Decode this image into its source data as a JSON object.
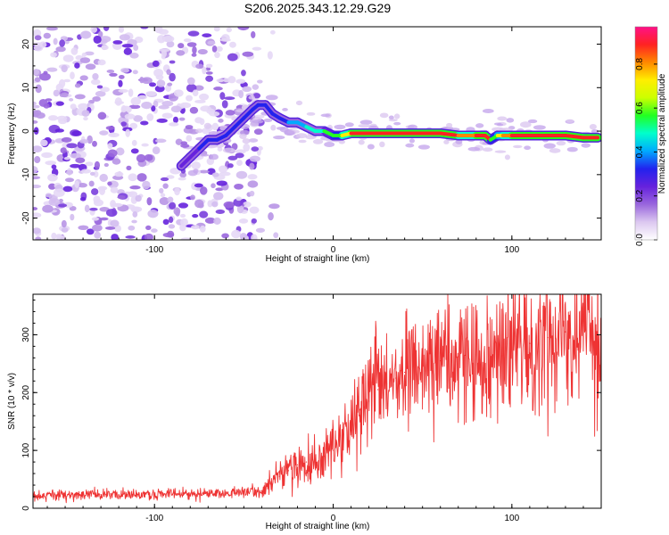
{
  "title": "S206.2025.343.12.29.G29",
  "chart_data": [
    {
      "type": "heatmap",
      "title": "S206.2025.343.12.29.G29",
      "xlabel": "Height of straight line (km)",
      "ylabel": "Frequency (Hz)",
      "xlim": [
        -168,
        150
      ],
      "ylim": [
        -25,
        24
      ],
      "xticks": [
        -100,
        0,
        100
      ],
      "yticks": [
        -20,
        -10,
        0,
        10,
        20
      ],
      "colorbar": {
        "label": "Normalized spectral amplitude",
        "range": [
          0,
          0.97
        ],
        "ticks": [
          0,
          0.2,
          0.4,
          0.6,
          0.8
        ],
        "colors": [
          "#ffffff",
          "#dcc8f0",
          "#9966dd",
          "#6622dd",
          "#2222ee",
          "#00aaff",
          "#00ffcc",
          "#22ff22",
          "#ccff00",
          "#ffee00",
          "#ff8800",
          "#ff2222",
          "#ff1188"
        ]
      },
      "noise_region_km": [
        -168,
        -40
      ],
      "ridge": {
        "x": [
          -85,
          -80,
          -75,
          -70,
          -65,
          -60,
          -55,
          -50,
          -45,
          -42,
          -38,
          -34,
          -30,
          -25,
          -20,
          -15,
          -10,
          -5,
          0,
          5,
          10,
          20,
          30,
          40,
          50,
          60,
          70,
          80,
          85,
          88,
          92,
          95,
          100,
          110,
          120,
          130,
          140,
          148
        ],
        "freq": [
          -8,
          -6,
          -4,
          -2,
          -2,
          -1,
          1,
          3,
          5,
          6,
          6,
          4,
          3,
          2,
          2,
          1,
          0,
          0,
          -1,
          -1,
          -0.5,
          -0.5,
          -0.5,
          -0.5,
          -0.5,
          -0.5,
          -1,
          -1,
          -1,
          -2,
          -1,
          -1,
          -1,
          -1,
          -1,
          -1,
          -1.5,
          -1.5
        ],
        "amplitude": [
          0.25,
          0.28,
          0.3,
          0.32,
          0.3,
          0.3,
          0.3,
          0.32,
          0.35,
          0.35,
          0.32,
          0.3,
          0.35,
          0.4,
          0.4,
          0.45,
          0.5,
          0.55,
          0.6,
          0.75,
          0.9,
          0.85,
          0.85,
          0.85,
          0.9,
          0.85,
          0.8,
          0.85,
          0.85,
          0.6,
          0.7,
          0.8,
          0.85,
          0.9,
          0.85,
          0.85,
          0.9,
          0.95
        ]
      }
    },
    {
      "type": "line",
      "xlabel": "Height of straight line (km)",
      "ylabel": "SNR (10 * v/v)",
      "xlim": [
        -168,
        150
      ],
      "ylim": [
        0,
        370
      ],
      "xticks": [
        -100,
        0,
        100
      ],
      "yticks": [
        0,
        100,
        200,
        300
      ],
      "series": [
        {
          "name": "SNR",
          "color": "#ee3333",
          "x": [
            -168,
            -150,
            -130,
            -110,
            -90,
            -70,
            -50,
            -40,
            -35,
            -30,
            -25,
            -20,
            -15,
            -10,
            -5,
            0,
            5,
            10,
            15,
            20,
            25,
            30,
            35,
            40,
            50,
            60,
            70,
            80,
            90,
            100,
            110,
            120,
            130,
            140,
            150
          ],
          "values": [
            22,
            23,
            24,
            24,
            24,
            25,
            27,
            30,
            45,
            55,
            65,
            75,
            80,
            85,
            90,
            100,
            125,
            150,
            170,
            185,
            205,
            215,
            225,
            235,
            245,
            255,
            262,
            265,
            272,
            278,
            285,
            295,
            305,
            315,
            320
          ]
        }
      ]
    }
  ]
}
